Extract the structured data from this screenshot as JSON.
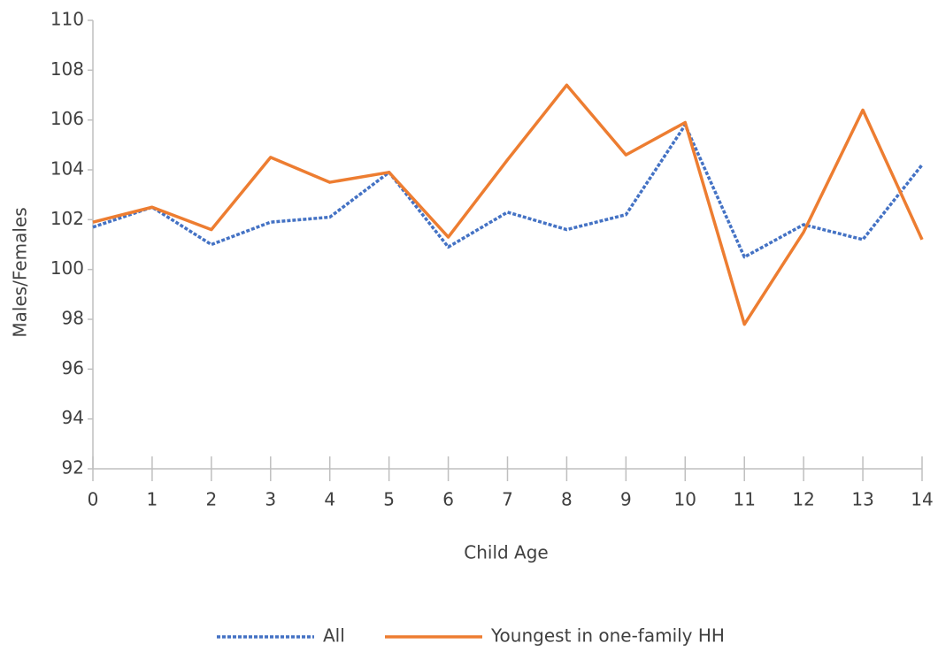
{
  "chart_data": {
    "type": "line",
    "x_label": "Child Age",
    "y_label": "Males/Females",
    "x": [
      0,
      1,
      2,
      3,
      4,
      5,
      6,
      7,
      8,
      9,
      10,
      11,
      12,
      13,
      14
    ],
    "series": [
      {
        "name": "All",
        "color": "#4472c4",
        "dash": "dotted",
        "values": [
          101.7,
          102.5,
          101.0,
          101.9,
          102.1,
          103.9,
          100.9,
          102.3,
          101.6,
          102.2,
          105.8,
          100.5,
          101.8,
          101.2,
          104.2
        ]
      },
      {
        "name": "Youngest in one-family HH",
        "color": "#ed7d31",
        "dash": "solid",
        "values": [
          101.9,
          102.5,
          101.6,
          104.5,
          103.5,
          103.9,
          101.3,
          104.4,
          107.4,
          104.6,
          105.9,
          97.8,
          101.5,
          106.4,
          101.2
        ]
      }
    ],
    "xlim": [
      0,
      14
    ],
    "xticks": [
      0,
      1,
      2,
      3,
      4,
      5,
      6,
      7,
      8,
      9,
      10,
      11,
      12,
      13,
      14
    ],
    "ylim": [
      92,
      110
    ],
    "yticks": [
      92,
      94,
      96,
      98,
      100,
      102,
      104,
      106,
      108,
      110
    ],
    "grid": false,
    "legend": "bottom"
  }
}
